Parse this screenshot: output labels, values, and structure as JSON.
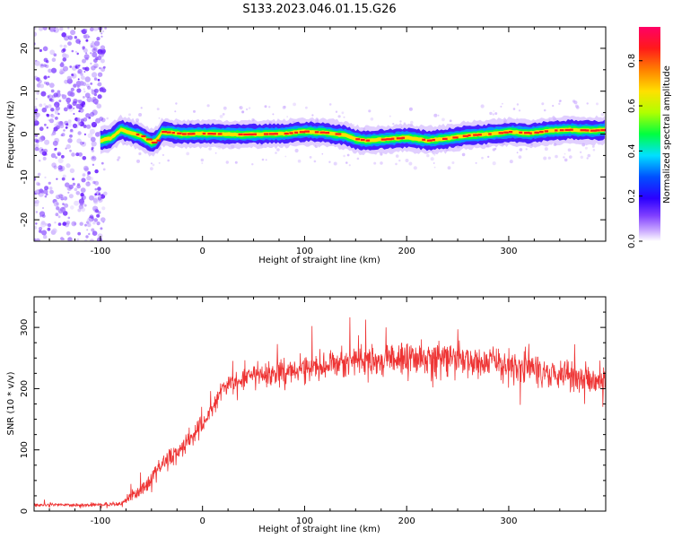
{
  "title": "S133.2023.046.01.15.G26",
  "colors": {
    "snr_line": "#ee3333",
    "spectrum_ridge": "#ff1a1a",
    "noise_scatter": "#7f3fff",
    "colormap": [
      "#ffffff",
      "#c9a8ff",
      "#7f3fff",
      "#2b00ff",
      "#0050ff",
      "#00e0ff",
      "#00ff40",
      "#b0ff00",
      "#ffe000",
      "#ff8000",
      "#ff1a1a",
      "#ff0066"
    ]
  },
  "chart_data": [
    {
      "type": "heatmap",
      "xlabel": "Height of straight line (km)",
      "ylabel": "Frequency (Hz)",
      "xlim": [
        -165,
        395
      ],
      "ylim": [
        -25,
        25
      ],
      "x_ticks": [
        -100,
        0,
        100,
        200,
        300
      ],
      "y_ticks": [
        -20,
        -10,
        0,
        10,
        20
      ],
      "grid": false,
      "colorbar": {
        "label": "Normalized spectral amplitude",
        "range": [
          0.0,
          0.95
        ],
        "ticks": [
          0.0,
          0.2,
          0.4,
          0.6,
          0.8
        ],
        "tick_labels": [
          "0.0",
          "0.2",
          "0.4",
          "0.6",
          "0.8"
        ]
      },
      "noise_region_x": [
        -165,
        -95
      ],
      "ridge": {
        "x": [
          -100,
          -90,
          -80,
          -70,
          -60,
          -50,
          -45,
          -40,
          -30,
          -20,
          0,
          20,
          40,
          60,
          80,
          100,
          120,
          140,
          150,
          160,
          180,
          200,
          220,
          240,
          260,
          280,
          300,
          320,
          340,
          360,
          380,
          395
        ],
        "y": [
          -1.5,
          -1.0,
          1.0,
          0.3,
          -0.5,
          -2.0,
          -1.5,
          0.5,
          0.3,
          0.0,
          0.1,
          0.0,
          -0.1,
          0.0,
          0.1,
          0.6,
          0.3,
          -0.3,
          -1.2,
          -1.5,
          -1.2,
          -0.8,
          -1.5,
          -1.0,
          -0.3,
          0.0,
          0.5,
          0.2,
          0.8,
          1.0,
          0.8,
          1.0
        ]
      }
    },
    {
      "type": "line",
      "xlabel": "Height of straight line (km)",
      "ylabel": "SNR (10 * v/v)",
      "xlim": [
        -165,
        395
      ],
      "ylim": [
        0,
        350
      ],
      "x_ticks": [
        -100,
        0,
        100,
        200,
        300
      ],
      "y_ticks": [
        0,
        100,
        200,
        300
      ],
      "grid": false,
      "series": [
        {
          "envelope_x": [
            -165,
            -100,
            -80,
            -70,
            -60,
            -50,
            -40,
            -30,
            -20,
            -10,
            0,
            10,
            20,
            30,
            50,
            70,
            100,
            150,
            200,
            250,
            300,
            350,
            395
          ],
          "envelope_y": [
            10,
            10,
            12,
            25,
            35,
            55,
            75,
            90,
            105,
            125,
            140,
            170,
            200,
            210,
            220,
            225,
            235,
            245,
            250,
            248,
            240,
            225,
            215
          ],
          "noise_amplitude": [
            4,
            4,
            6,
            12,
            18,
            22,
            26,
            26,
            26,
            24,
            24,
            24,
            25,
            25,
            28,
            30,
            32,
            38,
            40,
            40,
            42,
            40,
            35
          ]
        }
      ]
    }
  ]
}
